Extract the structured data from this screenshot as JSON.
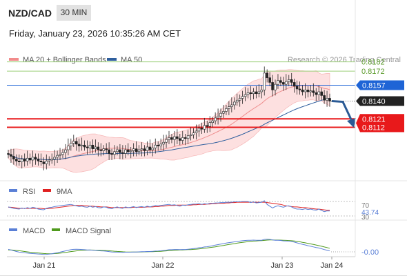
{
  "header": {
    "pair": "NZD/CAD",
    "timeframe": "30 MIN",
    "datetime": "Friday, January 23, 2026 10:35:26 AM CET"
  },
  "chart_data": [
    {
      "type": "candlestick",
      "title": "NZD/CAD",
      "legend": [
        {
          "name": "MA 20 + Bollinger Bands",
          "color": "#f28b8b"
        },
        {
          "name": "MA 50",
          "color": "#2f5f9e"
        }
      ],
      "credit": "Research © 2026 Trading Central",
      "levels": [
        {
          "value": 0.8182,
          "label": "0.8182",
          "kind": "resistance",
          "color": "#9ccf7a"
        },
        {
          "value": 0.8172,
          "label": "0.8172",
          "kind": "resistance",
          "color": "#9ccf7a"
        },
        {
          "value": 0.8157,
          "label": "0.8157",
          "kind": "pivot",
          "color": "#1e64d6"
        },
        {
          "value": 0.814,
          "label": "0.8140",
          "kind": "last price",
          "color": "#222222"
        },
        {
          "value": 0.8121,
          "label": "0.8121",
          "kind": "target",
          "color": "#e8191b"
        },
        {
          "value": 0.8112,
          "label": "0.8112",
          "kind": "target",
          "color": "#e8191b"
        }
      ],
      "ylim": [
        0.806,
        0.8195
      ],
      "x_ticks": [
        "Jan 21",
        "Jan 22",
        "Jan 23",
        "Jan 24"
      ],
      "close": [
        0.8083,
        0.8081,
        0.8078,
        0.8076,
        0.8075,
        0.8078,
        0.8076,
        0.8079,
        0.8077,
        0.808,
        0.8078,
        0.8076,
        0.8075,
        0.8073,
        0.8076,
        0.8077,
        0.8078,
        0.808,
        0.8082,
        0.8083,
        0.8085,
        0.8088,
        0.8092,
        0.8095,
        0.8097,
        0.8094,
        0.8092,
        0.8093,
        0.8091,
        0.809,
        0.8093,
        0.8089,
        0.8091,
        0.8088,
        0.8087,
        0.8089,
        0.8088,
        0.8084,
        0.8083,
        0.8086,
        0.8088,
        0.8085,
        0.8084,
        0.8088,
        0.8086,
        0.8087,
        0.8089,
        0.8086,
        0.8088,
        0.8089,
        0.8087,
        0.8091,
        0.8088,
        0.809,
        0.8093,
        0.8092,
        0.8094,
        0.8096,
        0.8099,
        0.8101,
        0.8099,
        0.8102,
        0.81,
        0.8098,
        0.8101,
        0.81,
        0.8103,
        0.8104,
        0.8106,
        0.8108,
        0.8111,
        0.811,
        0.8114,
        0.8113,
        0.8117,
        0.8119,
        0.8122,
        0.8124,
        0.8127,
        0.8129,
        0.8132,
        0.8134,
        0.8136,
        0.8139,
        0.8141,
        0.8143,
        0.8145,
        0.8147,
        0.8149,
        0.8148,
        0.815,
        0.8148,
        0.815,
        0.8152,
        0.817,
        0.8165,
        0.816,
        0.8152,
        0.8158,
        0.8162,
        0.816,
        0.8158,
        0.8161,
        0.8163,
        0.816,
        0.8156,
        0.8153,
        0.8152,
        0.815,
        0.8152,
        0.815,
        0.8151,
        0.8149,
        0.8147,
        0.815,
        0.8146,
        0.8141,
        0.8143,
        0.814
      ],
      "forecast": {
        "from": 0.814,
        "to": 0.8116,
        "direction": "down"
      },
      "current_price": 0.814
    },
    {
      "type": "line",
      "title": "RSI",
      "series": [
        {
          "name": "RSI",
          "color": "#5a7fd6"
        },
        {
          "name": "9MA",
          "color": "#e02020"
        }
      ],
      "levels": [
        70,
        30
      ],
      "tick_labels": [
        "70",
        "43.74",
        "30"
      ],
      "current_value": 43.74,
      "rsi": [
        55,
        53,
        51,
        50,
        49,
        52,
        50,
        53,
        51,
        54,
        52,
        49,
        48,
        47,
        51,
        53,
        54,
        56,
        57,
        58,
        59,
        60,
        61,
        62,
        60,
        58,
        56,
        57,
        55,
        54,
        57,
        54,
        56,
        53,
        52,
        55,
        54,
        51,
        50,
        53,
        55,
        52,
        51,
        55,
        53,
        54,
        56,
        53,
        55,
        56,
        54,
        57,
        55,
        57,
        59,
        58,
        59,
        60,
        61,
        62,
        60,
        61,
        59,
        57,
        60,
        59,
        61,
        62,
        63,
        63,
        64,
        62,
        64,
        63,
        65,
        65,
        66,
        66,
        67,
        67,
        68,
        68,
        68,
        69,
        69,
        69,
        70,
        70,
        70,
        67,
        69,
        66,
        67,
        68,
        72,
        62,
        57,
        52,
        56,
        58,
        56,
        54,
        57,
        58,
        55,
        51,
        49,
        49,
        48,
        50,
        48,
        49,
        47,
        46,
        49,
        45,
        42,
        44,
        43.74
      ],
      "ma9": [
        54,
        54,
        53,
        52,
        51,
        51,
        51,
        51,
        51,
        51,
        51,
        51,
        51,
        50,
        50,
        51,
        51,
        52,
        53,
        54,
        55,
        56,
        57,
        58,
        59,
        59,
        59,
        59,
        58,
        58,
        57,
        57,
        56,
        56,
        55,
        55,
        55,
        54,
        53,
        53,
        53,
        53,
        53,
        53,
        53,
        53,
        54,
        54,
        54,
        54,
        54,
        55,
        55,
        55,
        56,
        56,
        57,
        57,
        58,
        59,
        59,
        59,
        60,
        60,
        60,
        60,
        60,
        60,
        61,
        61,
        62,
        62,
        62,
        63,
        63,
        64,
        64,
        65,
        65,
        65,
        66,
        66,
        67,
        67,
        68,
        68,
        68,
        68,
        68,
        68,
        68,
        68,
        68,
        68,
        68,
        67,
        66,
        65,
        64,
        63,
        62,
        60,
        58,
        57,
        56,
        55,
        55,
        54,
        53,
        53,
        52,
        51,
        50,
        49,
        49,
        48,
        47,
        46,
        46
      ]
    },
    {
      "type": "line",
      "title": "MACD",
      "series": [
        {
          "name": "MACD",
          "color": "#5a7fd6"
        },
        {
          "name": "MACD Signal",
          "color": "#4f9a1d"
        }
      ],
      "tick_labels": [
        "-0.00"
      ],
      "current_value": -0.0,
      "macd": [
        0.0004,
        0.0003,
        0.00018,
        6e-05,
        -4e-05,
        -0.0001,
        -0.00016,
        -0.0002,
        -0.00024,
        -0.00028,
        -0.0003,
        -0.00034,
        -0.00038,
        -0.00042,
        -0.0004,
        -0.00036,
        -0.0003,
        -0.00022,
        -0.00014,
        -4e-05,
        6e-05,
        0.00016,
        0.00026,
        0.00034,
        0.0004,
        0.00042,
        0.0004,
        0.00038,
        0.00034,
        0.0003,
        0.0003,
        0.00026,
        0.00024,
        0.0002,
        0.00016,
        0.00014,
        0.0001,
        4e-05,
        -2e-05,
        -4e-05,
        -4e-05,
        -6e-05,
        -8e-05,
        -6e-05,
        -6e-05,
        -4e-05,
        -2e-05,
        -2e-05,
        0.0,
        2e-05,
        2e-05,
        6e-05,
        6e-05,
        8e-05,
        0.00012,
        0.00014,
        0.00018,
        0.00022,
        0.00028,
        0.00034,
        0.00034,
        0.00038,
        0.00038,
        0.00036,
        0.00038,
        0.00038,
        0.00042,
        0.00046,
        0.00052,
        0.00058,
        0.00066,
        0.0007,
        0.00078,
        0.00082,
        0.0009,
        0.00098,
        0.00108,
        0.00116,
        0.00124,
        0.00132,
        0.0014,
        0.00148,
        0.00154,
        0.0016,
        0.00166,
        0.00172,
        0.00178,
        0.00182,
        0.00186,
        0.00186,
        0.00188,
        0.00186,
        0.00186,
        0.00186,
        0.002,
        0.00204,
        0.002,
        0.0019,
        0.00186,
        0.00186,
        0.00182,
        0.00176,
        0.00174,
        0.00172,
        0.00166,
        0.00156,
        0.00144,
        0.00132,
        0.0012,
        0.0011,
        0.00098,
        0.0009,
        0.0008,
        0.0007,
        0.00062,
        0.0005,
        0.00036,
        0.00026,
        0.00014
      ],
      "signal": [
        0.0003,
        0.0003,
        0.00028,
        0.00024,
        0.00018,
        0.00012,
        6e-05,
        0.0,
        -6e-05,
        -0.0001,
        -0.00014,
        -0.00018,
        -0.00022,
        -0.00026,
        -0.00029,
        -0.0003,
        -0.0003,
        -0.00028,
        -0.00025,
        -0.00021,
        -0.00016,
        -0.0001,
        -3e-05,
        4e-05,
        0.0001,
        0.00016,
        0.00021,
        0.00024,
        0.00027,
        0.00028,
        0.00029,
        0.00029,
        0.00028,
        0.00027,
        0.00025,
        0.00023,
        0.00021,
        0.00018,
        0.00014,
        0.0001,
        7e-05,
        4e-05,
        1e-05,
        -1e-05,
        -2e-05,
        -3e-05,
        -3e-05,
        -3e-05,
        -2e-05,
        -1e-05,
        0.0,
        1e-05,
        2e-05,
        3e-05,
        5e-05,
        7e-05,
        9e-05,
        0.00012,
        0.00015,
        0.00019,
        0.00022,
        0.00025,
        0.00028,
        0.0003,
        0.00031,
        0.00033,
        0.00035,
        0.00037,
        0.0004,
        0.00043,
        0.00048,
        0.00052,
        0.00057,
        0.00062,
        0.00068,
        0.00074,
        0.0008,
        0.00088,
        0.00095,
        0.00102,
        0.0011,
        0.00118,
        0.00125,
        0.00132,
        0.00139,
        0.00146,
        0.00152,
        0.00158,
        0.00164,
        0.00168,
        0.00172,
        0.00175,
        0.00178,
        0.0018,
        0.00184,
        0.00188,
        0.0019,
        0.0019,
        0.00189,
        0.00189,
        0.00188,
        0.00186,
        0.00183,
        0.00181,
        0.00178,
        0.00174,
        0.00168,
        0.00161,
        0.00153,
        0.00145,
        0.00136,
        0.00127,
        0.00118,
        0.00109,
        0.00099,
        0.00089,
        0.00078,
        0.00068,
        0.00057
      ]
    }
  ]
}
